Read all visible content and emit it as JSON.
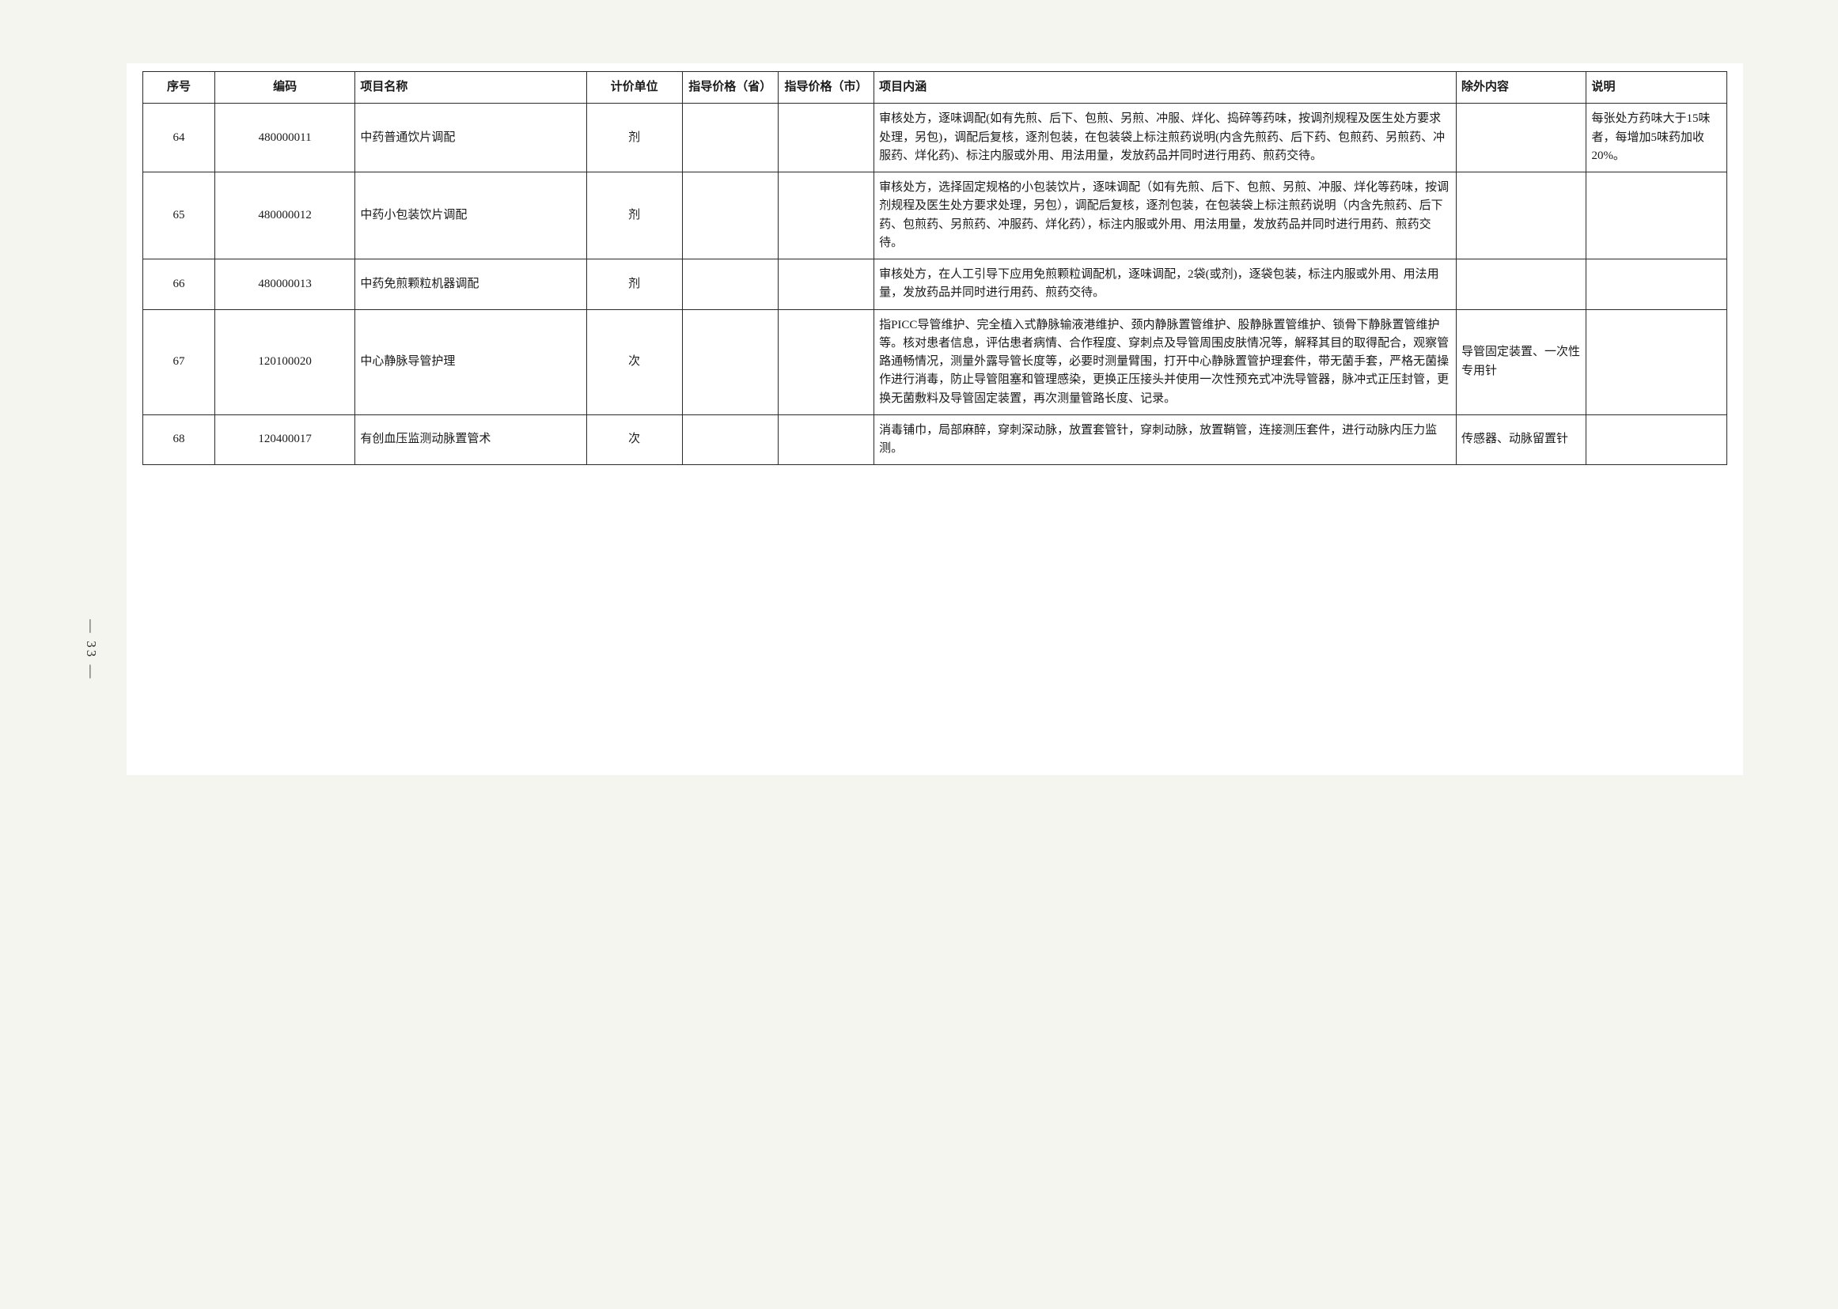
{
  "page_number": "— 33 —",
  "table": {
    "headers": {
      "seq": "序号",
      "code": "编码",
      "name": "项目名称",
      "unit": "计价单位",
      "price_province": "指导价格（省）",
      "price_city": "指导价格（市）",
      "content": "项目内涵",
      "exclude": "除外内容",
      "note": "说明"
    },
    "rows": [
      {
        "seq": "64",
        "code": "480000011",
        "name": "中药普通饮片调配",
        "unit": "剂",
        "price_province": "",
        "price_city": "",
        "content": "审核处方，逐味调配(如有先煎、后下、包煎、另煎、冲服、烊化、捣碎等药味，按调剂规程及医生处方要求处理，另包)，调配后复核，逐剂包装，在包装袋上标注煎药说明(内含先煎药、后下药、包煎药、另煎药、冲服药、烊化药)、标注内服或外用、用法用量，发放药品并同时进行用药、煎药交待。",
        "exclude": "",
        "note": "每张处方药味大于15味者，每增加5味药加收20%。"
      },
      {
        "seq": "65",
        "code": "480000012",
        "name": "中药小包装饮片调配",
        "unit": "剂",
        "price_province": "",
        "price_city": "",
        "content": "审核处方，选择固定规格的小包装饮片，逐味调配（如有先煎、后下、包煎、另煎、冲服、烊化等药味，按调剂规程及医生处方要求处理，另包），调配后复核，逐剂包装，在包装袋上标注煎药说明（内含先煎药、后下药、包煎药、另煎药、冲服药、烊化药），标注内服或外用、用法用量，发放药品并同时进行用药、煎药交待。",
        "exclude": "",
        "note": ""
      },
      {
        "seq": "66",
        "code": "480000013",
        "name": "中药免煎颗粒机器调配",
        "unit": "剂",
        "price_province": "",
        "price_city": "",
        "content": "审核处方，在人工引导下应用免煎颗粒调配机，逐味调配，2袋(或剂)，逐袋包装，标注内服或外用、用法用量，发放药品并同时进行用药、煎药交待。",
        "exclude": "",
        "note": ""
      },
      {
        "seq": "67",
        "code": "120100020",
        "name": "中心静脉导管护理",
        "unit": "次",
        "price_province": "",
        "price_city": "",
        "content": "指PICC导管维护、完全植入式静脉输液港维护、颈内静脉置管维护、股静脉置管维护、锁骨下静脉置管维护等。核对患者信息，评估患者病情、合作程度、穿刺点及导管周围皮肤情况等，解释其目的取得配合，观察管路通畅情况，测量外露导管长度等，必要时测量臂围，打开中心静脉置管护理套件，带无菌手套，严格无菌操作进行消毒，防止导管阻塞和管理感染，更换正压接头并使用一次性预充式冲洗导管器，脉冲式正压封管，更换无菌敷料及导管固定装置，再次测量管路长度、记录。",
        "exclude": "导管固定装置、一次性专用针",
        "note": ""
      },
      {
        "seq": "68",
        "code": "120400017",
        "name": "有创血压监测动脉置管术",
        "unit": "次",
        "price_province": "",
        "price_city": "",
        "content": "消毒铺巾，局部麻醉，穿刺深动脉，放置套管针，穿刺动脉，放置鞘管，连接测压套件，进行动脉内压力监测。",
        "exclude": "传感器、动脉留置针",
        "note": ""
      }
    ]
  },
  "styling": {
    "page_bg": "#f5f5f0",
    "paper_bg": "#ffffff",
    "border_color": "#2a2a2a",
    "text_color": "#1a1a1a",
    "font_family": "SimSun",
    "cell_font_size": 15,
    "line_height": 1.55,
    "border_width": 1.5,
    "column_widths_pct": {
      "seq": 4.2,
      "code": 8.2,
      "name": 13.5,
      "unit": 5.6,
      "price_province": 5.6,
      "price_city": 5.6,
      "content": 34,
      "exclude": 7.6,
      "note": 8.2
    }
  }
}
